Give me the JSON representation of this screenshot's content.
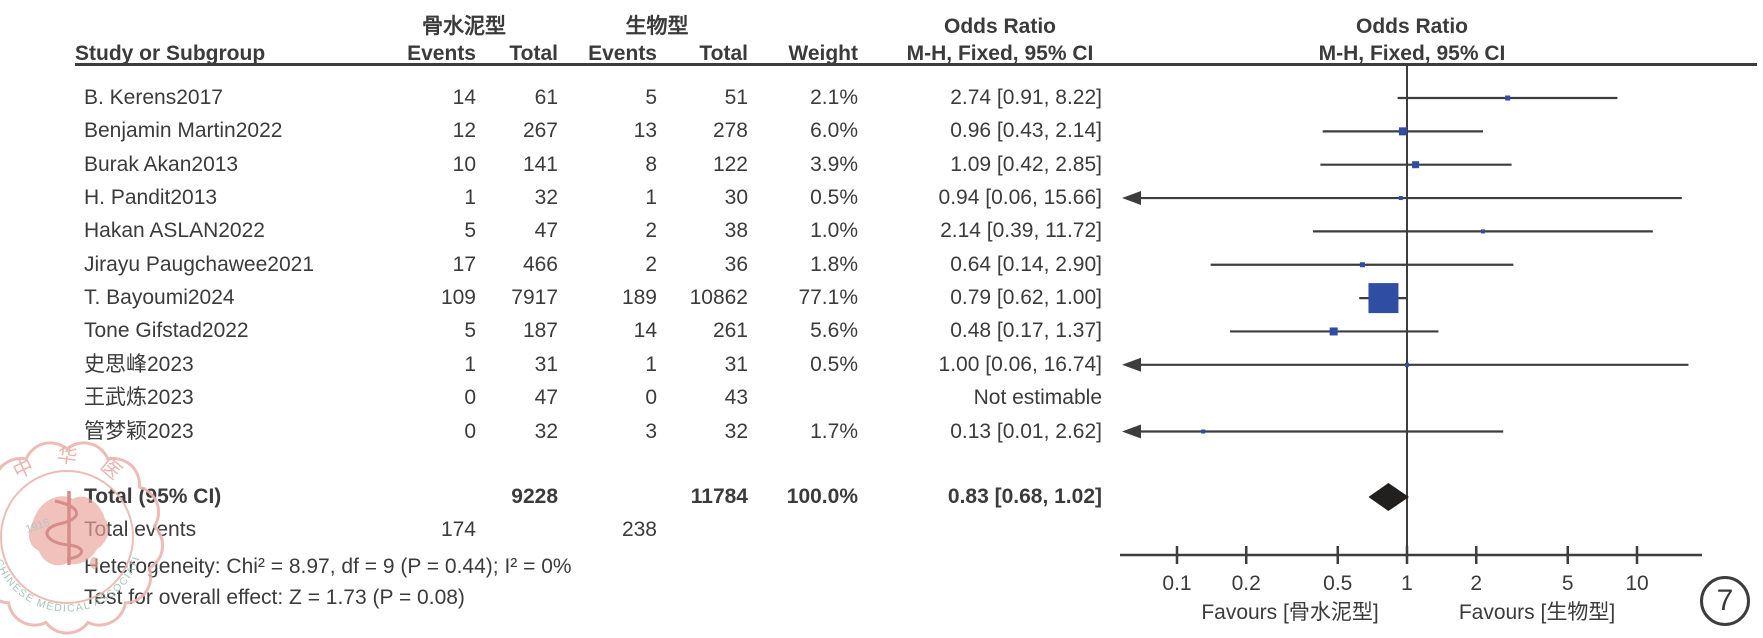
{
  "figure_label": "7",
  "headers": {
    "group1": "骨水泥型",
    "group2": "生物型",
    "study": "Study or Subgroup",
    "events1": "Events",
    "total1": "Total",
    "events2": "Events",
    "total2": "Total",
    "weight": "Weight",
    "or_title_left": "Odds Ratio",
    "or_title_right": "Odds Ratio",
    "mh_left": "M-H, Fixed, 95% CI",
    "mh_right": "M-H, Fixed, 95% CI"
  },
  "summary": {
    "total_label": "Total (95% CI)",
    "total1": "9228",
    "total2": "11784",
    "weight": "100.0%",
    "ci_text": "0.83 [0.68, 1.02]",
    "or": 0.83,
    "lo": 0.68,
    "hi": 1.02,
    "total_events_label": "Total events",
    "events1": "174",
    "events2": "238",
    "heterogeneity": "Heterogeneity: Chi² = 8.97, df = 9 (P = 0.44); I² = 0%",
    "overall_effect": "Test for overall effect: Z = 1.73 (P = 0.08)"
  },
  "chart_data": {
    "type": "forest",
    "x_scale": "log10",
    "effect_measure": "Odds Ratio (M-H, Fixed, 95% CI)",
    "axis": {
      "ticks": [
        "0.1",
        "0.2",
        "0.5",
        "1",
        "2",
        "5",
        "10"
      ],
      "tick_values": [
        0.1,
        0.2,
        0.5,
        1,
        2,
        5,
        10
      ],
      "range": [
        0.056,
        18.5
      ],
      "favours_left": "Favours [骨水泥型]",
      "favours_right": "Favours [生物型]"
    },
    "studies": [
      {
        "name": "B. Kerens2017",
        "events1": "14",
        "total1": "61",
        "events2": "5",
        "total2": "51",
        "weight": "2.1%",
        "ci_text": "2.74 [0.91, 8.22]",
        "or": 2.74,
        "lo": 0.91,
        "hi": 8.22,
        "weight_pct": 2.1,
        "clipped_lo": false
      },
      {
        "name": "Benjamin Martin2022",
        "events1": "12",
        "total1": "267",
        "events2": "13",
        "total2": "278",
        "weight": "6.0%",
        "ci_text": "0.96 [0.43, 2.14]",
        "or": 0.96,
        "lo": 0.43,
        "hi": 2.14,
        "weight_pct": 6.0,
        "clipped_lo": false
      },
      {
        "name": "Burak Akan2013",
        "events1": "10",
        "total1": "141",
        "events2": "8",
        "total2": "122",
        "weight": "3.9%",
        "ci_text": "1.09 [0.42, 2.85]",
        "or": 1.09,
        "lo": 0.42,
        "hi": 2.85,
        "weight_pct": 3.9,
        "clipped_lo": false
      },
      {
        "name": "H. Pandit2013",
        "events1": "1",
        "total1": "32",
        "events2": "1",
        "total2": "30",
        "weight": "0.5%",
        "ci_text": "0.94 [0.06, 15.66]",
        "or": 0.94,
        "lo": 0.06,
        "hi": 15.66,
        "weight_pct": 0.5,
        "clipped_lo": true
      },
      {
        "name": "Hakan ASLAN2022",
        "events1": "5",
        "total1": "47",
        "events2": "2",
        "total2": "38",
        "weight": "1.0%",
        "ci_text": "2.14 [0.39, 11.72]",
        "or": 2.14,
        "lo": 0.39,
        "hi": 11.72,
        "weight_pct": 1.0,
        "clipped_lo": false
      },
      {
        "name": "Jirayu Paugchawee2021",
        "events1": "17",
        "total1": "466",
        "events2": "2",
        "total2": "36",
        "weight": "1.8%",
        "ci_text": "0.64 [0.14, 2.90]",
        "or": 0.64,
        "lo": 0.14,
        "hi": 2.9,
        "weight_pct": 1.8,
        "clipped_lo": false
      },
      {
        "name": "T. Bayoumi2024",
        "events1": "109",
        "total1": "7917",
        "events2": "189",
        "total2": "10862",
        "weight": "77.1%",
        "ci_text": "0.79 [0.62, 1.00]",
        "or": 0.79,
        "lo": 0.62,
        "hi": 1.0,
        "weight_pct": 77.1,
        "clipped_lo": false
      },
      {
        "name": "Tone Gifstad2022",
        "events1": "5",
        "total1": "187",
        "events2": "14",
        "total2": "261",
        "weight": "5.6%",
        "ci_text": "0.48 [0.17, 1.37]",
        "or": 0.48,
        "lo": 0.17,
        "hi": 1.37,
        "weight_pct": 5.6,
        "clipped_lo": false
      },
      {
        "name": "史思峰2023",
        "events1": "1",
        "total1": "31",
        "events2": "1",
        "total2": "31",
        "weight": "0.5%",
        "ci_text": "1.00 [0.06, 16.74]",
        "or": 1.0,
        "lo": 0.06,
        "hi": 16.74,
        "weight_pct": 0.5,
        "clipped_lo": true
      },
      {
        "name": "王武炼2023",
        "events1": "0",
        "total1": "47",
        "events2": "0",
        "total2": "43",
        "weight": "",
        "ci_text": "Not estimable",
        "or": null,
        "lo": null,
        "hi": null,
        "weight_pct": null,
        "clipped_lo": false
      },
      {
        "name": "管梦颖2023",
        "events1": "0",
        "total1": "32",
        "events2": "3",
        "total2": "32",
        "weight": "1.7%",
        "ci_text": "0.13 [0.01, 2.62]",
        "or": 0.13,
        "lo": 0.01,
        "hi": 2.62,
        "weight_pct": 1.7,
        "clipped_lo": true
      }
    ]
  },
  "colors": {
    "marker_blue": "#2e4da3",
    "line_dark": "#3d3d3d",
    "diamond_black": "#221f1f",
    "watermark_pink": "#e9aca6",
    "watermark_green": "#9fbfb5"
  },
  "watermark": {
    "top_text": "中华医",
    "bottom_text": "CHINESE MEDICAL ASSOCIATION",
    "year": "1915"
  }
}
